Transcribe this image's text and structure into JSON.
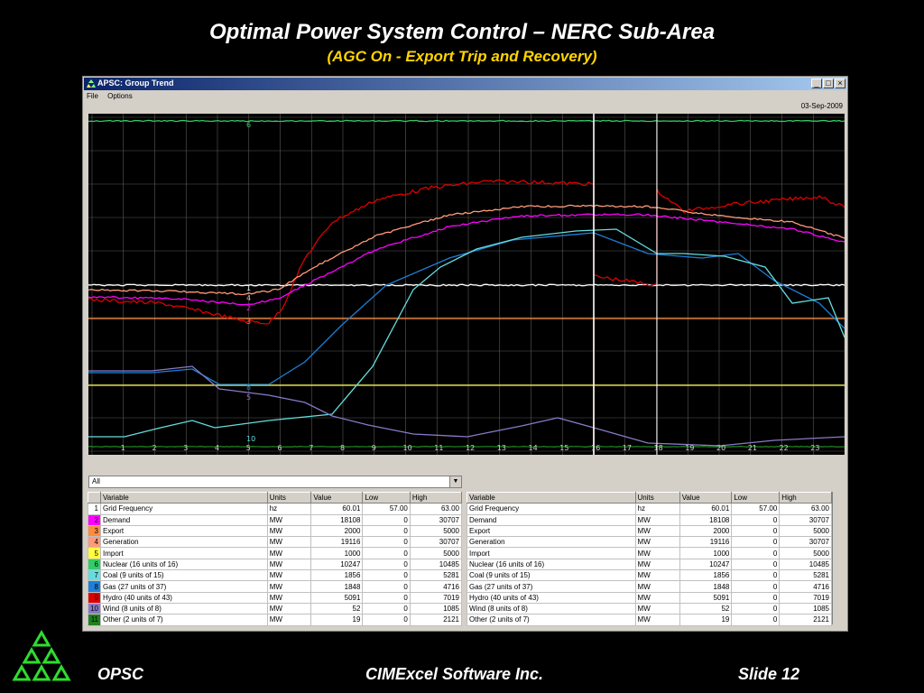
{
  "slide": {
    "title": "Optimal Power System Control – NERC Sub-Area",
    "subtitle": "(AGC On - Export Trip and Recovery)",
    "footer_left": "OPSC",
    "footer_center": "CIMExcel Software Inc.",
    "footer_right": "Slide 12"
  },
  "window": {
    "title": "APSC: Group Trend",
    "minimize": "_",
    "maximize": "□",
    "close": "×",
    "menu": [
      "File",
      "Options"
    ],
    "date": "03-Sep-2009"
  },
  "trend": {
    "hour_labels": [
      "1",
      "2",
      "3",
      "4",
      "5",
      "6",
      "7",
      "8",
      "9",
      "10",
      "11",
      "12",
      "13",
      "14",
      "15",
      "16",
      "17",
      "18",
      "19",
      "20",
      "21",
      "22",
      "23"
    ],
    "trace_labels": [
      "6",
      "1",
      "4",
      "2",
      "3",
      "8",
      "5",
      "10",
      "7"
    ],
    "colors": {
      "background": "#000000",
      "grid": "#5a5a5a",
      "frequency": "#ffffff",
      "demand": "#ff00ff",
      "export": "#ff8c3c",
      "generation": "#ff9a7a",
      "import": "#ffff40",
      "nuclear": "#33cc66",
      "coal": "#66dddd",
      "gas": "#1e7fd8",
      "hydro": "#dd0000",
      "wind": "#8a7ac8",
      "other": "#208020"
    }
  },
  "selector": {
    "value": "All",
    "arrow": "▼"
  },
  "table_left": {
    "headers": [
      "Variable",
      "Units",
      "Value",
      "Low",
      "High"
    ],
    "rows": [
      {
        "idx": "1",
        "color": "#ffffff",
        "name": "Grid Frequency",
        "units": "hz",
        "value": "60.01",
        "low": "57.00",
        "high": "63.00"
      },
      {
        "idx": "2",
        "color": "#ff00ff",
        "name": "Demand",
        "units": "MW",
        "value": "18108",
        "low": "0",
        "high": "30707"
      },
      {
        "idx": "3",
        "color": "#ff8c3c",
        "name": "Export",
        "units": "MW",
        "value": "2000",
        "low": "0",
        "high": "5000"
      },
      {
        "idx": "4",
        "color": "#ff9a7a",
        "name": "Generation",
        "units": "MW",
        "value": "19116",
        "low": "0",
        "high": "30707"
      },
      {
        "idx": "5",
        "color": "#ffff40",
        "name": "Import",
        "units": "MW",
        "value": "1000",
        "low": "0",
        "high": "5000"
      },
      {
        "idx": "6",
        "color": "#33cc66",
        "name": "Nuclear  (16 units of 16)",
        "units": "MW",
        "value": "10247",
        "low": "0",
        "high": "10485"
      },
      {
        "idx": "7",
        "color": "#66dddd",
        "name": "Coal  (9 units of 15)",
        "units": "MW",
        "value": "1856",
        "low": "0",
        "high": "5281"
      },
      {
        "idx": "8",
        "color": "#1e7fd8",
        "name": "Gas  (27 units of 37)",
        "units": "MW",
        "value": "1848",
        "low": "0",
        "high": "4716"
      },
      {
        "idx": "9",
        "color": "#dd0000",
        "name": "Hydro  (40 units of 43)",
        "units": "MW",
        "value": "5091",
        "low": "0",
        "high": "7019"
      },
      {
        "idx": "10",
        "color": "#8a7ac8",
        "name": "Wind  (8 units of 8)",
        "units": "MW",
        "value": "52",
        "low": "0",
        "high": "1085"
      },
      {
        "idx": "11",
        "color": "#208020",
        "name": "Other  (2 units of 7)",
        "units": "MW",
        "value": "19",
        "low": "0",
        "high": "2121"
      }
    ]
  },
  "table_right": {
    "headers": [
      "Variable",
      "Units",
      "Value",
      "Low",
      "High"
    ],
    "rows": [
      {
        "name": "Grid Frequency",
        "units": "hz",
        "value": "60.01",
        "low": "57.00",
        "high": "63.00"
      },
      {
        "name": "Demand",
        "units": "MW",
        "value": "18108",
        "low": "0",
        "high": "30707"
      },
      {
        "name": "Export",
        "units": "MW",
        "value": "2000",
        "low": "0",
        "high": "5000"
      },
      {
        "name": "Generation",
        "units": "MW",
        "value": "19116",
        "low": "0",
        "high": "30707"
      },
      {
        "name": "Import",
        "units": "MW",
        "value": "1000",
        "low": "0",
        "high": "5000"
      },
      {
        "name": "Nuclear  (16 units of 16)",
        "units": "MW",
        "value": "10247",
        "low": "0",
        "high": "10485"
      },
      {
        "name": "Coal  (9 units of 15)",
        "units": "MW",
        "value": "1856",
        "low": "0",
        "high": "5281"
      },
      {
        "name": "Gas  (27 units of 37)",
        "units": "MW",
        "value": "1848",
        "low": "0",
        "high": "4716"
      },
      {
        "name": "Hydro  (40 units of 43)",
        "units": "MW",
        "value": "5091",
        "low": "0",
        "high": "7019"
      },
      {
        "name": "Wind  (8 units of 8)",
        "units": "MW",
        "value": "52",
        "low": "0",
        "high": "1085"
      },
      {
        "name": "Other  (2 units of 7)",
        "units": "MW",
        "value": "19",
        "low": "0",
        "high": "2121"
      }
    ]
  }
}
